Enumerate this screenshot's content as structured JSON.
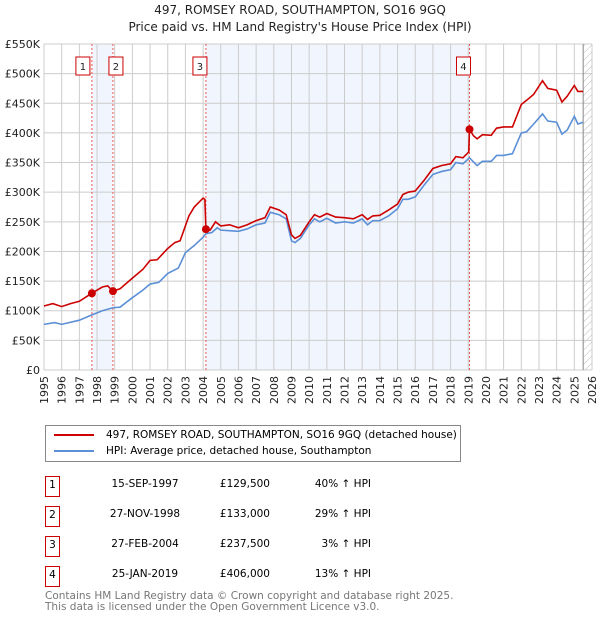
{
  "chart_data": {
    "type": "line",
    "title": "497, ROMSEY ROAD, SOUTHAMPTON, SO16 9GQ",
    "subtitle": "Price paid vs. HM Land Registry's House Price Index (HPI)",
    "xlim": [
      1995,
      2026
    ],
    "ylim": [
      0,
      550000
    ],
    "x_ticks": [
      "1995",
      "1996",
      "1997",
      "1998",
      "1999",
      "2000",
      "2001",
      "2002",
      "2003",
      "2004",
      "2005",
      "2006",
      "2007",
      "2008",
      "2009",
      "2010",
      "2011",
      "2012",
      "2013",
      "2014",
      "2015",
      "2016",
      "2017",
      "2018",
      "2019",
      "2020",
      "2021",
      "2022",
      "2023",
      "2024",
      "2025",
      "2026"
    ],
    "y_ticks": [
      {
        "v": 0,
        "label": "£0"
      },
      {
        "v": 50000,
        "label": "£50K"
      },
      {
        "v": 100000,
        "label": "£100K"
      },
      {
        "v": 150000,
        "label": "£150K"
      },
      {
        "v": 200000,
        "label": "£200K"
      },
      {
        "v": 250000,
        "label": "£250K"
      },
      {
        "v": 300000,
        "label": "£300K"
      },
      {
        "v": 350000,
        "label": "£350K"
      },
      {
        "v": 400000,
        "label": "£400K"
      },
      {
        "v": 450000,
        "label": "£450K"
      },
      {
        "v": 500000,
        "label": "£500K"
      },
      {
        "v": 550000,
        "label": "£550K"
      }
    ],
    "grid": true,
    "forecast_from": 2025.5,
    "shaded_ranges": [
      [
        1997.71,
        1998.9
      ],
      [
        2004.16,
        2019.07
      ]
    ],
    "series": [
      {
        "name": "497, ROMSEY ROAD, SOUTHAMPTON, SO16 9GQ (detached house)",
        "color": "#cc0000",
        "unit": "thousands GBP",
        "points": [
          [
            1995,
            108
          ],
          [
            1995.5,
            112
          ],
          [
            1996,
            107
          ],
          [
            1996.5,
            112
          ],
          [
            1997,
            116
          ],
          [
            1997.71,
            129.5
          ],
          [
            1998.3,
            140
          ],
          [
            1998.6,
            142
          ],
          [
            1998.9,
            133
          ],
          [
            1999.3,
            137
          ],
          [
            2000,
            155
          ],
          [
            2000.6,
            170
          ],
          [
            2001,
            185
          ],
          [
            2001.4,
            186
          ],
          [
            2002,
            205
          ],
          [
            2002.4,
            215
          ],
          [
            2002.7,
            218
          ],
          [
            2003.2,
            260
          ],
          [
            2003.5,
            275
          ],
          [
            2004,
            290
          ],
          [
            2004.1,
            288
          ],
          [
            2004.16,
            237.5
          ],
          [
            2004.4,
            236
          ],
          [
            2004.7,
            250
          ],
          [
            2005,
            243
          ],
          [
            2005.5,
            245
          ],
          [
            2006,
            240
          ],
          [
            2006.5,
            245
          ],
          [
            2007,
            252
          ],
          [
            2007.5,
            257
          ],
          [
            2007.8,
            275
          ],
          [
            2008.3,
            270
          ],
          [
            2008.7,
            262
          ],
          [
            2009,
            228
          ],
          [
            2009.2,
            222
          ],
          [
            2009.5,
            227
          ],
          [
            2010,
            250
          ],
          [
            2010.3,
            262
          ],
          [
            2010.6,
            258
          ],
          [
            2011,
            264
          ],
          [
            2011.5,
            258
          ],
          [
            2012,
            257
          ],
          [
            2012.5,
            255
          ],
          [
            2013,
            262
          ],
          [
            2013.3,
            254
          ],
          [
            2013.6,
            260
          ],
          [
            2014,
            261
          ],
          [
            2014.5,
            270
          ],
          [
            2015,
            280
          ],
          [
            2015.3,
            296
          ],
          [
            2015.6,
            300
          ],
          [
            2016,
            302
          ],
          [
            2016.5,
            320
          ],
          [
            2017,
            340
          ],
          [
            2017.5,
            345
          ],
          [
            2018,
            348
          ],
          [
            2018.3,
            360
          ],
          [
            2018.7,
            358
          ],
          [
            2019.03,
            368
          ],
          [
            2019.07,
            406
          ],
          [
            2019.3,
            395
          ],
          [
            2019.5,
            390
          ],
          [
            2019.8,
            397
          ],
          [
            2020.3,
            396
          ],
          [
            2020.6,
            408
          ],
          [
            2021,
            410
          ],
          [
            2021.5,
            410
          ],
          [
            2022,
            448
          ],
          [
            2022.3,
            455
          ],
          [
            2022.7,
            465
          ],
          [
            2023.2,
            488
          ],
          [
            2023.5,
            475
          ],
          [
            2024,
            472
          ],
          [
            2024.3,
            452
          ],
          [
            2024.6,
            462
          ],
          [
            2025,
            480
          ],
          [
            2025.2,
            470
          ],
          [
            2025.5,
            470
          ]
        ]
      },
      {
        "name": "HPI: Average price, detached house, Southampton",
        "color": "#5b8fd6",
        "unit": "thousands GBP",
        "points": [
          [
            1995,
            77
          ],
          [
            1995.6,
            80
          ],
          [
            1996,
            77
          ],
          [
            1997,
            84
          ],
          [
            1997.71,
            93
          ],
          [
            1998.3,
            100
          ],
          [
            1998.9,
            105
          ],
          [
            1999.3,
            106
          ],
          [
            2000,
            122
          ],
          [
            2000.6,
            135
          ],
          [
            2001,
            145
          ],
          [
            2001.5,
            148
          ],
          [
            2002,
            163
          ],
          [
            2002.6,
            172
          ],
          [
            2003,
            198
          ],
          [
            2003.5,
            210
          ],
          [
            2004,
            224
          ],
          [
            2004.16,
            230
          ],
          [
            2004.5,
            232
          ],
          [
            2004.8,
            240
          ],
          [
            2005,
            236
          ],
          [
            2006,
            234
          ],
          [
            2006.5,
            238
          ],
          [
            2007,
            245
          ],
          [
            2007.5,
            248
          ],
          [
            2007.8,
            266
          ],
          [
            2008.3,
            262
          ],
          [
            2008.7,
            255
          ],
          [
            2009,
            218
          ],
          [
            2009.2,
            215
          ],
          [
            2009.5,
            222
          ],
          [
            2010,
            245
          ],
          [
            2010.3,
            255
          ],
          [
            2010.6,
            250
          ],
          [
            2011,
            256
          ],
          [
            2011.5,
            248
          ],
          [
            2012,
            250
          ],
          [
            2012.5,
            248
          ],
          [
            2013,
            255
          ],
          [
            2013.3,
            245
          ],
          [
            2013.6,
            252
          ],
          [
            2014,
            252
          ],
          [
            2014.5,
            260
          ],
          [
            2015,
            272
          ],
          [
            2015.3,
            288
          ],
          [
            2015.6,
            288
          ],
          [
            2016,
            292
          ],
          [
            2016.5,
            312
          ],
          [
            2017,
            330
          ],
          [
            2017.5,
            335
          ],
          [
            2018,
            338
          ],
          [
            2018.3,
            350
          ],
          [
            2018.7,
            348
          ],
          [
            2019.07,
            358
          ],
          [
            2019.5,
            345
          ],
          [
            2019.8,
            352
          ],
          [
            2020.3,
            352
          ],
          [
            2020.6,
            362
          ],
          [
            2021,
            362
          ],
          [
            2021.5,
            365
          ],
          [
            2022,
            400
          ],
          [
            2022.3,
            402
          ],
          [
            2022.7,
            415
          ],
          [
            2023.2,
            432
          ],
          [
            2023.5,
            420
          ],
          [
            2024,
            418
          ],
          [
            2024.3,
            398
          ],
          [
            2024.6,
            405
          ],
          [
            2025,
            428
          ],
          [
            2025.2,
            415
          ],
          [
            2025.5,
            418
          ]
        ]
      }
    ],
    "sales": [
      {
        "id": "1",
        "x": 1997.71,
        "y": 129.5
      },
      {
        "id": "2",
        "x": 1998.9,
        "y": 133
      },
      {
        "id": "3",
        "x": 2004.16,
        "y": 237.5
      },
      {
        "id": "4",
        "x": 2019.07,
        "y": 406
      }
    ]
  },
  "legend": {
    "property": "497, ROMSEY ROAD, SOUTHAMPTON, SO16 9GQ (detached house)",
    "hpi": "HPI: Average price, detached house, Southampton"
  },
  "transactions": [
    {
      "num": "1",
      "date": "15-SEP-1997",
      "price": "£129,500",
      "hpi": "40% ↑ HPI"
    },
    {
      "num": "2",
      "date": "27-NOV-1998",
      "price": "£133,000",
      "hpi": "29% ↑ HPI"
    },
    {
      "num": "3",
      "date": "27-FEB-2004",
      "price": "£237,500",
      "hpi": "3% ↑ HPI"
    },
    {
      "num": "4",
      "date": "25-JAN-2019",
      "price": "£406,000",
      "hpi": "13% ↑ HPI"
    }
  ],
  "footer": {
    "line1": "Contains HM Land Registry data © Crown copyright and database right 2025.",
    "line2": "This data is licensed under the Open Government Licence v3.0."
  }
}
